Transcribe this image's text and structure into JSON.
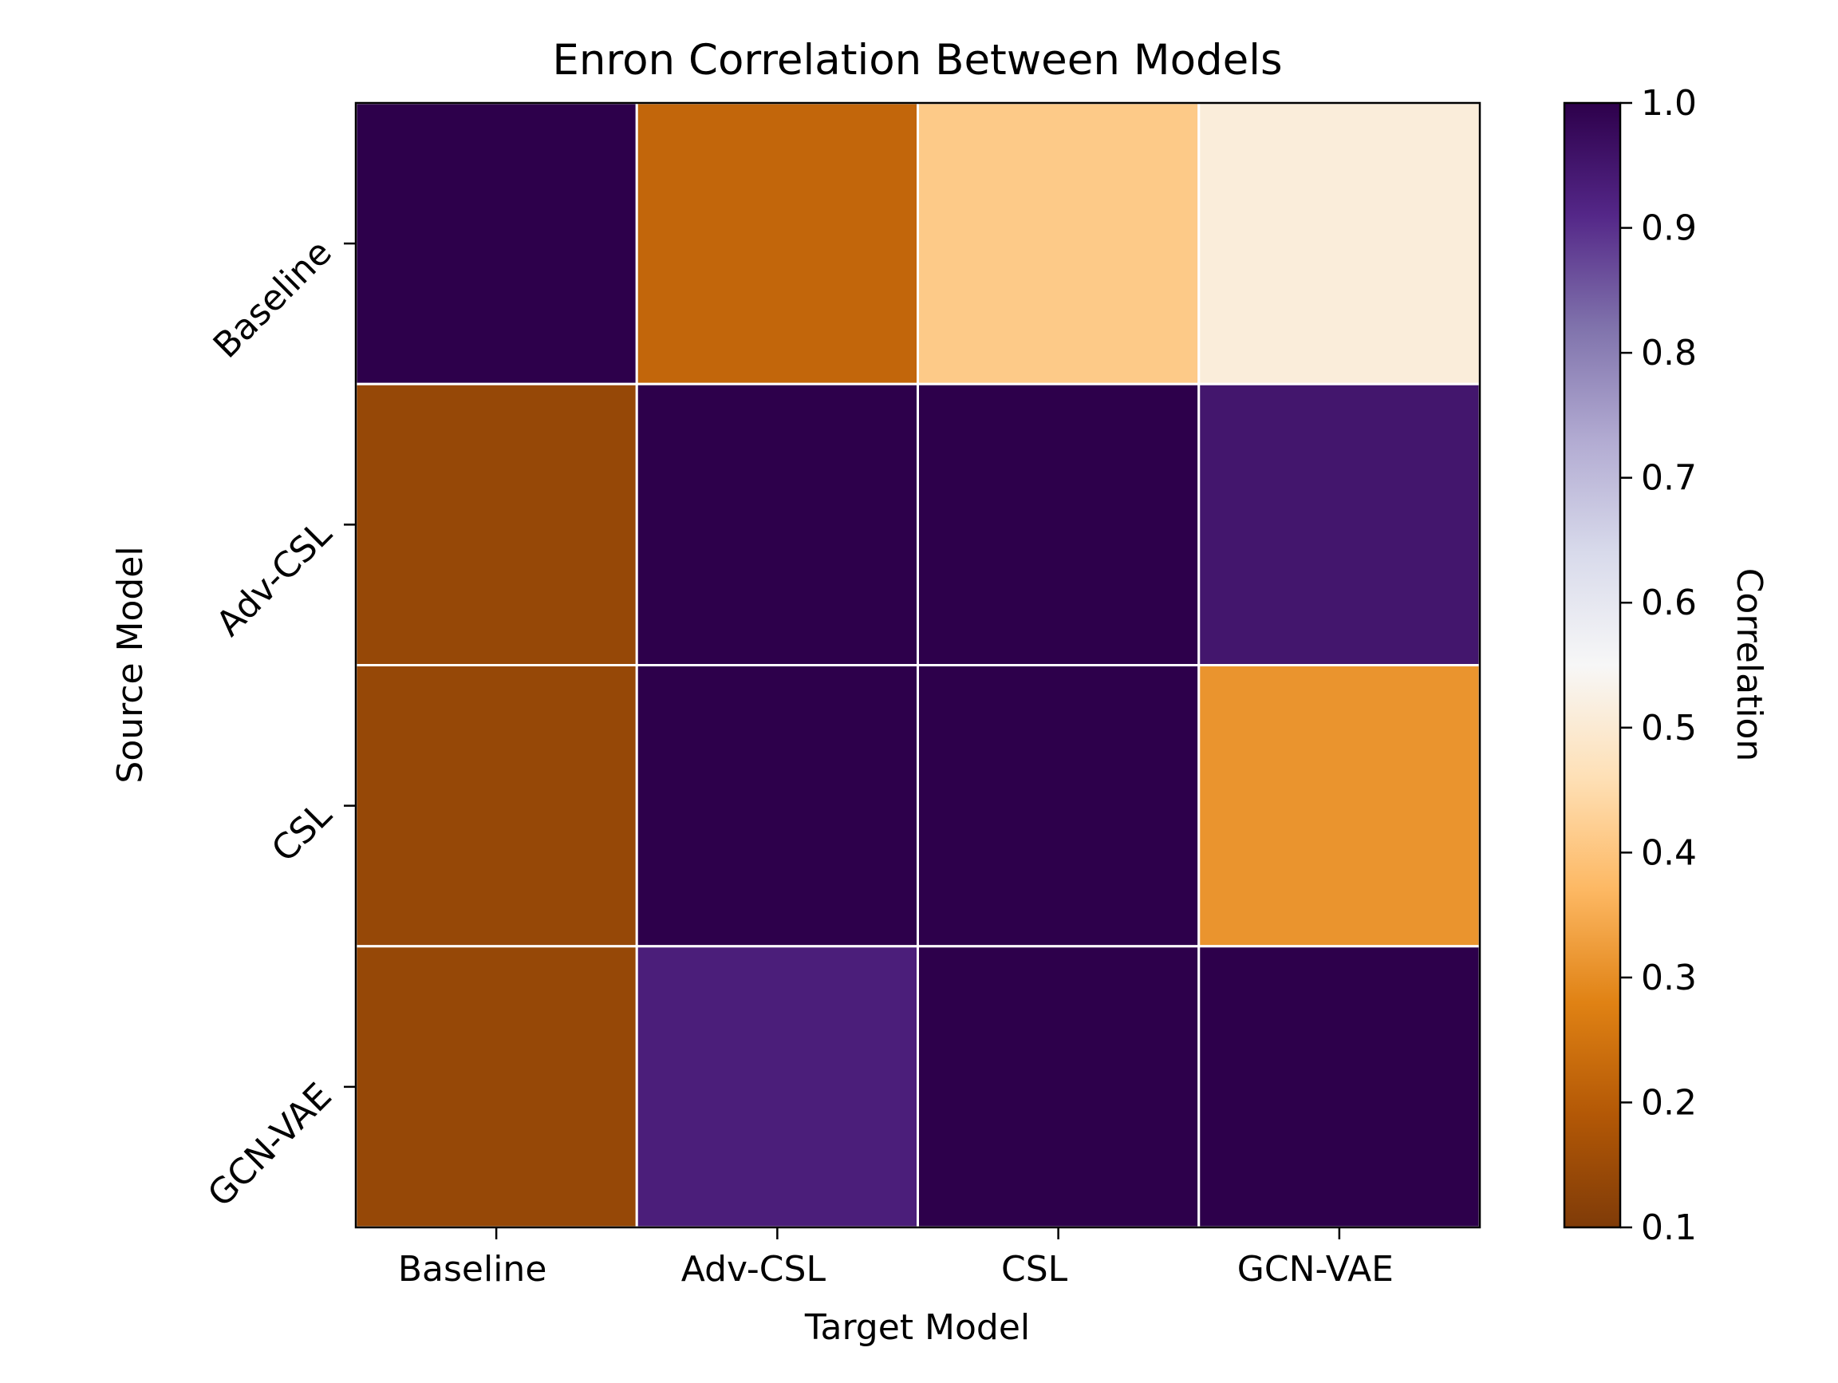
{
  "chart_data": {
    "type": "heatmap",
    "title": "Enron Correlation Between Models",
    "xlabel": "Target Model",
    "ylabel": "Source Model",
    "x_categories": [
      "Baseline",
      "Adv-CSL",
      "CSL",
      "GCN-VAE"
    ],
    "y_categories": [
      "Baseline",
      "Adv-CSL",
      "CSL",
      "GCN-VAE"
    ],
    "values": [
      [
        1.0,
        0.22,
        0.41,
        0.51
      ],
      [
        0.14,
        1.0,
        1.0,
        0.95
      ],
      [
        0.14,
        1.0,
        1.0,
        0.31
      ],
      [
        0.14,
        0.93,
        1.0,
        1.0
      ]
    ],
    "colorbar": {
      "label": "Correlation",
      "range": [
        0.1,
        1.0
      ],
      "ticks": [
        "0.1",
        "0.2",
        "0.3",
        "0.4",
        "0.5",
        "0.6",
        "0.7",
        "0.8",
        "0.9",
        "1.0"
      ],
      "colormap": "PuOr",
      "colors": [
        "#7f3b08",
        "#b35806",
        "#e08214",
        "#fdb863",
        "#fee0b6",
        "#f7f7f7",
        "#d8daeb",
        "#b2abd2",
        "#8073ac",
        "#542788",
        "#2d004b"
      ]
    },
    "grid": false,
    "cell_border_color": "#ffffff"
  }
}
